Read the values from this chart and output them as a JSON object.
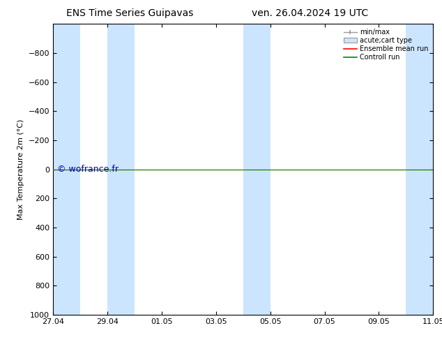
{
  "title_left": "ENS Time Series Guipavas",
  "title_right": "ven. 26.04.2024 19 UTC",
  "ylabel": "Max Temperature 2m (°C)",
  "xlabel_ticks": [
    "27.04",
    "29.04",
    "01.05",
    "03.05",
    "05.05",
    "07.05",
    "09.05",
    "11.05"
  ],
  "xlim": [
    0,
    14
  ],
  "ylim": [
    1000,
    -1000
  ],
  "yticks": [
    -800,
    -600,
    -400,
    -200,
    0,
    200,
    400,
    600,
    800,
    1000
  ],
  "background_color": "#ffffff",
  "plot_bg_color": "#ffffff",
  "watermark": "© wofrance.fr",
  "watermark_color": "#0000bb",
  "shaded_columns": [
    {
      "x_start": 0.0,
      "x_end": 1.0
    },
    {
      "x_start": 2.0,
      "x_end": 3.0
    },
    {
      "x_start": 7.0,
      "x_end": 8.0
    },
    {
      "x_start": 13.0,
      "x_end": 14.0
    }
  ],
  "shaded_color": "#cce5ff",
  "control_run_y": 0,
  "control_run_color": "#008800",
  "ensemble_mean_color": "#ff0000",
  "min_max_color": "#999999",
  "legend_labels": [
    "min/max",
    "acute;cart type",
    "Ensemble mean run",
    "Controll run"
  ],
  "x_tick_positions": [
    0,
    2,
    4,
    6,
    8,
    10,
    12,
    14
  ],
  "figsize": [
    6.34,
    4.9
  ],
  "dpi": 100,
  "tick_fontsize": 8,
  "label_fontsize": 8,
  "title_fontsize": 10,
  "legend_fontsize": 7
}
